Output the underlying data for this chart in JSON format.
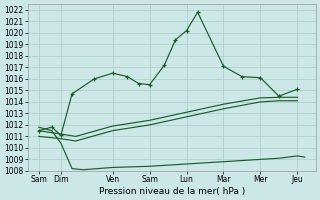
{
  "bg_color": "#cce8e6",
  "grid_color": "#aaccca",
  "line_color": "#1a5c28",
  "xlabel": "Pression niveau de la mer( hPa )",
  "ylim": [
    1008,
    1022.5
  ],
  "yticks": [
    1008,
    1009,
    1010,
    1011,
    1012,
    1013,
    1014,
    1015,
    1016,
    1017,
    1018,
    1019,
    1020,
    1021,
    1022
  ],
  "xtick_positions": [
    0,
    0.6,
    2,
    3,
    4,
    5,
    6,
    7
  ],
  "xtick_labels": [
    "Sam",
    "Dim",
    "Ven",
    "Sam",
    "Lun",
    "Mar",
    "Mer",
    "Jeu"
  ],
  "xlim": [
    -0.3,
    7.5
  ],
  "line1_x": [
    0.0,
    0.35,
    0.6,
    0.9,
    1.5,
    2.0,
    2.4,
    2.7,
    3.0,
    3.4,
    3.7,
    4.0,
    4.3,
    5.0,
    5.5,
    6.0,
    6.5,
    7.0
  ],
  "line1_y": [
    1011.5,
    1011.8,
    1011.1,
    1014.7,
    1016.0,
    1016.5,
    1016.2,
    1015.6,
    1015.5,
    1017.2,
    1019.4,
    1020.2,
    1021.8,
    1017.1,
    1016.2,
    1016.1,
    1014.5,
    1015.1
  ],
  "line2_x": [
    0.0,
    0.6,
    1.0,
    2.0,
    3.0,
    4.0,
    5.0,
    6.0,
    6.5,
    7.0
  ],
  "line2_y": [
    1011.0,
    1010.8,
    1010.6,
    1011.5,
    1012.0,
    1012.7,
    1013.4,
    1014.0,
    1014.1,
    1014.1
  ],
  "line3_x": [
    0.0,
    0.6,
    1.0,
    2.0,
    3.0,
    4.0,
    5.0,
    6.0,
    6.5,
    7.0
  ],
  "line3_y": [
    1011.5,
    1011.2,
    1011.0,
    1011.9,
    1012.4,
    1013.1,
    1013.8,
    1014.35,
    1014.4,
    1014.4
  ],
  "line4_x": [
    0.0,
    0.35,
    0.6,
    0.9,
    1.2,
    2.0,
    3.0,
    4.0,
    5.0,
    6.0,
    6.5,
    7.0,
    7.2
  ],
  "line4_y": [
    1011.8,
    1011.5,
    1010.4,
    1008.2,
    1008.1,
    1008.3,
    1008.4,
    1008.6,
    1008.8,
    1009.0,
    1009.1,
    1009.3,
    1009.2
  ]
}
